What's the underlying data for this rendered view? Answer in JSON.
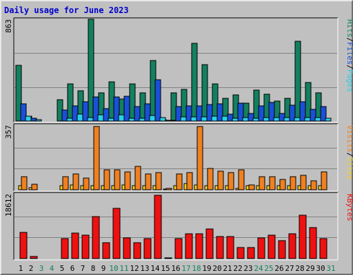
{
  "title": "Daily usage for June 2023",
  "colors": {
    "pages": "#29d1e6",
    "files": "#1a4fd8",
    "hits": "#138060",
    "sites": "#f0d020",
    "visits": "#f08020",
    "kbytes": "#ee1111",
    "weekend_label": "#138060",
    "panel_bg": "#c0c0c0"
  },
  "chart_data": [
    {
      "type": "bar",
      "panel": "hits-files-pages",
      "ylabel_max": "863",
      "legend": [
        {
          "text": "Pages",
          "color": "#29d1e6"
        },
        {
          "text": "Files",
          "color": "#1a4fd8"
        },
        {
          "text": "Hits",
          "color": "#138060"
        }
      ],
      "ylim": [
        0,
        863
      ],
      "x": [
        1,
        2,
        3,
        4,
        5,
        6,
        7,
        8,
        9,
        10,
        11,
        12,
        13,
        14,
        15,
        16,
        17,
        18,
        19,
        20,
        21,
        22,
        23,
        24,
        25,
        26,
        27,
        28,
        29,
        30,
        31
      ],
      "series": [
        {
          "name": "Hits",
          "values": [
            474,
            38,
            0,
            0,
            180,
            316,
            254,
            863,
            238,
            335,
            189,
            316,
            238,
            513,
            10,
            238,
            271,
            658,
            479,
            316,
            190,
            224,
            152,
            264,
            227,
            169,
            194,
            677,
            325,
            238,
            0
          ]
        },
        {
          "name": "Files",
          "values": [
            143,
            24,
            0,
            0,
            92,
            130,
            163,
            205,
            104,
            206,
            212,
            120,
            144,
            347,
            5,
            125,
            127,
            128,
            139,
            144,
            58,
            150,
            64,
            130,
            155,
            65,
            135,
            162,
            101,
            125,
            0
          ]
        },
        {
          "name": "Pages",
          "values": [
            38,
            10,
            0,
            0,
            24,
            60,
            27,
            54,
            24,
            52,
            25,
            26,
            48,
            32,
            2,
            33,
            35,
            33,
            39,
            41,
            25,
            29,
            24,
            30,
            28,
            27,
            30,
            28,
            28,
            26,
            0
          ]
        }
      ]
    },
    {
      "type": "bar",
      "panel": "visits-sites",
      "ylabel_max": "357",
      "legend": [
        {
          "text": "Sites",
          "color": "#f0d020"
        },
        {
          "text": "Visits",
          "color": "#f08020"
        }
      ],
      "ylim": [
        0,
        357
      ],
      "x": [
        1,
        2,
        3,
        4,
        5,
        6,
        7,
        8,
        9,
        10,
        11,
        12,
        13,
        14,
        15,
        16,
        17,
        18,
        19,
        20,
        21,
        22,
        23,
        24,
        25,
        26,
        27,
        28,
        29,
        30,
        31
      ],
      "series": [
        {
          "name": "Sites",
          "values": [
            22,
            10,
            0,
            0,
            22,
            26,
            22,
            22,
            22,
            22,
            26,
            22,
            22,
            22,
            2,
            22,
            34,
            26,
            22,
            22,
            22,
            8,
            22,
            22,
            22,
            22,
            22,
            22,
            22,
            22,
            0
          ]
        },
        {
          "name": "Visits",
          "values": [
            75,
            30,
            0,
            0,
            75,
            90,
            67,
            357,
            113,
            113,
            101,
            131,
            90,
            97,
            8,
            90,
            97,
            357,
            120,
            105,
            97,
            113,
            26,
            75,
            75,
            60,
            75,
            82,
            52,
            101,
            0
          ]
        }
      ]
    },
    {
      "type": "bar",
      "panel": "kbytes",
      "ylabel_max": "18612",
      "legend": [
        {
          "text": "KBytes",
          "color": "#ee1111"
        }
      ],
      "ylim": [
        0,
        18612
      ],
      "x": [
        1,
        2,
        3,
        4,
        5,
        6,
        7,
        8,
        9,
        10,
        11,
        12,
        13,
        14,
        15,
        16,
        17,
        18,
        19,
        20,
        21,
        22,
        23,
        24,
        25,
        26,
        27,
        28,
        29,
        30,
        31
      ],
      "series": [
        {
          "name": "KBytes",
          "values": [
            7700,
            700,
            0,
            0,
            5900,
            7500,
            6800,
            12300,
            4600,
            14800,
            6000,
            4600,
            5900,
            18612,
            300,
            5900,
            7300,
            7300,
            8800,
            6400,
            6400,
            3300,
            3300,
            6000,
            6800,
            5200,
            7300,
            12700,
            9200,
            5900,
            0
          ]
        }
      ]
    }
  ],
  "x_labels": [
    {
      "text": "1",
      "weekend": false
    },
    {
      "text": "2",
      "weekend": false
    },
    {
      "text": "3",
      "weekend": true
    },
    {
      "text": "4",
      "weekend": true
    },
    {
      "text": "5",
      "weekend": false
    },
    {
      "text": "6",
      "weekend": false
    },
    {
      "text": "7",
      "weekend": false
    },
    {
      "text": "8",
      "weekend": false
    },
    {
      "text": "9",
      "weekend": false
    },
    {
      "text": "10",
      "weekend": true
    },
    {
      "text": "11",
      "weekend": true
    },
    {
      "text": "12",
      "weekend": false
    },
    {
      "text": "13",
      "weekend": false
    },
    {
      "text": "14",
      "weekend": false
    },
    {
      "text": "15",
      "weekend": false
    },
    {
      "text": "16",
      "weekend": false
    },
    {
      "text": "17",
      "weekend": true
    },
    {
      "text": "18",
      "weekend": true
    },
    {
      "text": "19",
      "weekend": false
    },
    {
      "text": "20",
      "weekend": false
    },
    {
      "text": "21",
      "weekend": false
    },
    {
      "text": "22",
      "weekend": false
    },
    {
      "text": "23",
      "weekend": false
    },
    {
      "text": "24",
      "weekend": true
    },
    {
      "text": "25",
      "weekend": true
    },
    {
      "text": "26",
      "weekend": false
    },
    {
      "text": "27",
      "weekend": false
    },
    {
      "text": "28",
      "weekend": false
    },
    {
      "text": "29",
      "weekend": false
    },
    {
      "text": "30",
      "weekend": false
    },
    {
      "text": "31",
      "weekend": true
    }
  ]
}
